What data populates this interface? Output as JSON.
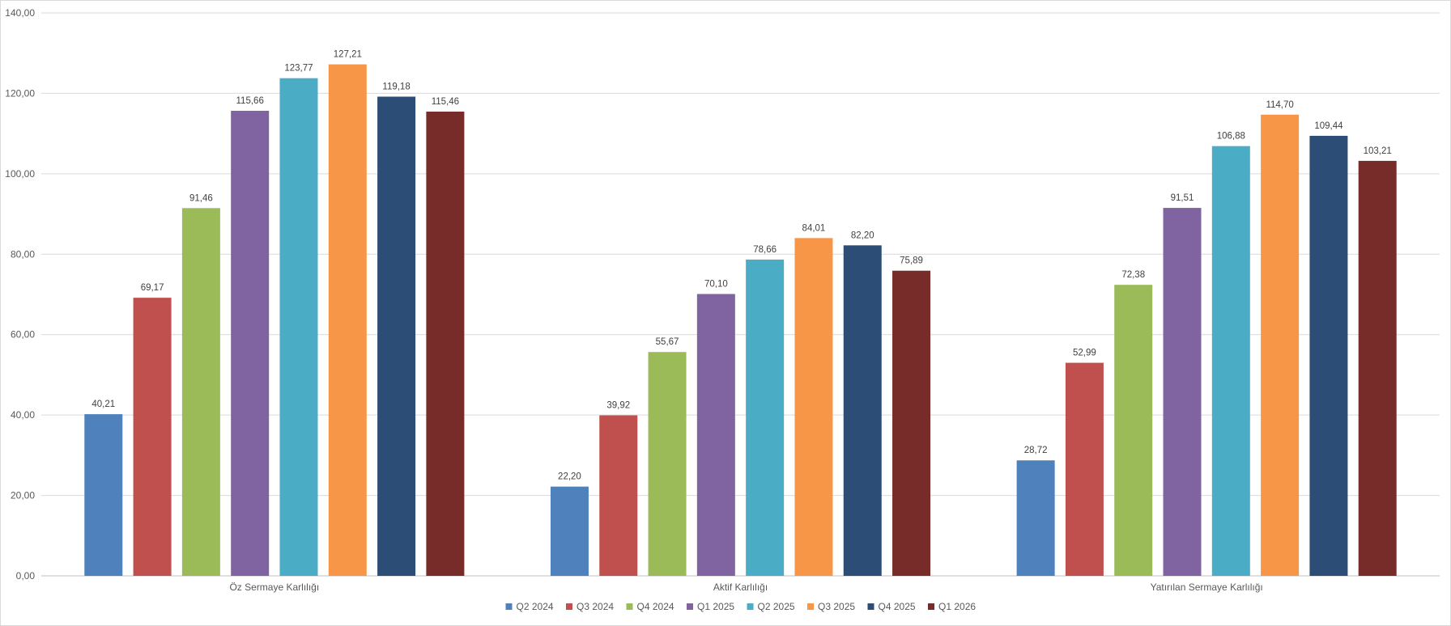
{
  "chart_data": {
    "type": "bar",
    "title": "",
    "xlabel": "",
    "ylabel": "",
    "categories": [
      "Öz Sermaye Karlılığı",
      "Aktif Karlılığı",
      "Yatırılan Sermaye Karlılığı"
    ],
    "series": [
      {
        "name": "Q2 2024",
        "color": "#4f81bd",
        "values": [
          40.21,
          22.2,
          28.72
        ],
        "labels": [
          "40,21",
          "22,20",
          "28,72"
        ]
      },
      {
        "name": "Q3 2024",
        "color": "#c0504d",
        "values": [
          69.17,
          39.92,
          52.99
        ],
        "labels": [
          "69,17",
          "39,92",
          "52,99"
        ]
      },
      {
        "name": "Q4 2024",
        "color": "#9bbb59",
        "values": [
          91.46,
          55.67,
          72.38
        ],
        "labels": [
          "91,46",
          "55,67",
          "72,38"
        ]
      },
      {
        "name": "Q1 2025",
        "color": "#8064a2",
        "values": [
          115.66,
          70.1,
          91.51
        ],
        "labels": [
          "115,66",
          "70,10",
          "91,51"
        ]
      },
      {
        "name": "Q2 2025",
        "color": "#4bacc6",
        "values": [
          123.77,
          78.66,
          106.88
        ],
        "labels": [
          "123,77",
          "78,66",
          "106,88"
        ]
      },
      {
        "name": "Q3 2025",
        "color": "#f79646",
        "values": [
          127.21,
          84.01,
          114.7
        ],
        "labels": [
          "127,21",
          "84,01",
          "114,70"
        ]
      },
      {
        "name": "Q4 2025",
        "color": "#2c4d75",
        "values": [
          119.18,
          82.2,
          109.44
        ],
        "labels": [
          "119,18",
          "82,20",
          "109,44"
        ]
      },
      {
        "name": "Q1 2026",
        "color": "#772c2a",
        "values": [
          115.46,
          75.89,
          103.21
        ],
        "labels": [
          "115,46",
          "75,89",
          "103,21"
        ]
      }
    ],
    "ylim": [
      0,
      140
    ],
    "yticks": [
      0,
      20,
      40,
      60,
      80,
      100,
      120,
      140
    ],
    "ytick_labels": [
      "0,00",
      "20,00",
      "40,00",
      "60,00",
      "80,00",
      "100,00",
      "120,00",
      "140,00"
    ],
    "grid": true,
    "legend_position": "bottom"
  }
}
